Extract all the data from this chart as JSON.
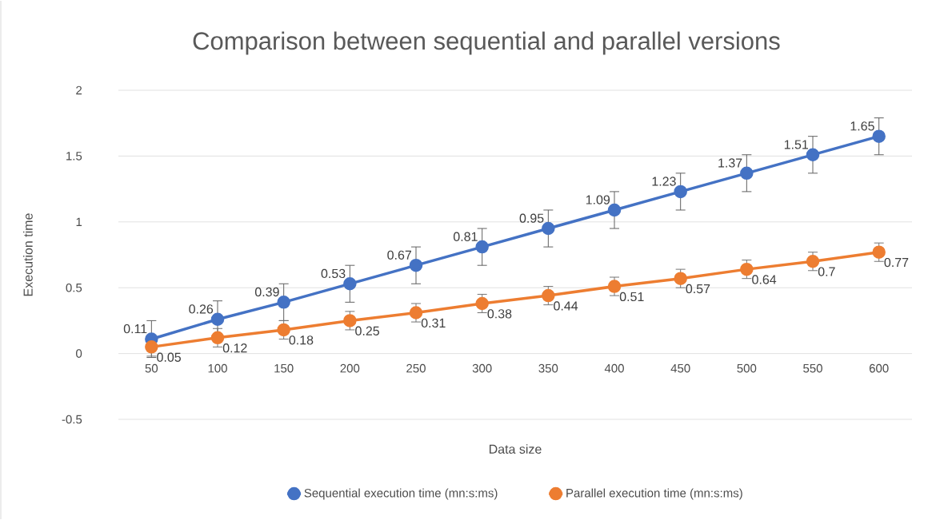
{
  "chart_data": {
    "type": "line",
    "title": "Comparison between sequential and parallel versions",
    "xlabel": "Data size",
    "ylabel": "Execution time",
    "categories": [
      "50",
      "100",
      "150",
      "200",
      "250",
      "300",
      "350",
      "400",
      "450",
      "500",
      "550",
      "600"
    ],
    "series": [
      {
        "name": "Sequential execution time (mn:s:ms)",
        "color": "#4472c4",
        "values": [
          0.11,
          0.26,
          0.39,
          0.53,
          0.67,
          0.81,
          0.95,
          1.09,
          1.23,
          1.37,
          1.51,
          1.65
        ],
        "errors": [
          0.14,
          0.14,
          0.14,
          0.14,
          0.14,
          0.14,
          0.14,
          0.14,
          0.14,
          0.14,
          0.14,
          0.14
        ]
      },
      {
        "name": "Parallel execution time (mn:s:ms)",
        "color": "#ed7d31",
        "values": [
          0.05,
          0.12,
          0.18,
          0.25,
          0.31,
          0.38,
          0.44,
          0.51,
          0.57,
          0.64,
          0.7,
          0.77
        ],
        "errors": [
          0.07,
          0.07,
          0.07,
          0.07,
          0.07,
          0.07,
          0.07,
          0.07,
          0.07,
          0.07,
          0.07,
          0.07
        ]
      }
    ],
    "ylim": [
      -0.5,
      2
    ],
    "yticks": [
      -0.5,
      0,
      0.5,
      1,
      1.5,
      2
    ],
    "grid": "y",
    "legend": "bottom",
    "marker": "circle",
    "line_style": "solid",
    "data_labels": true
  }
}
